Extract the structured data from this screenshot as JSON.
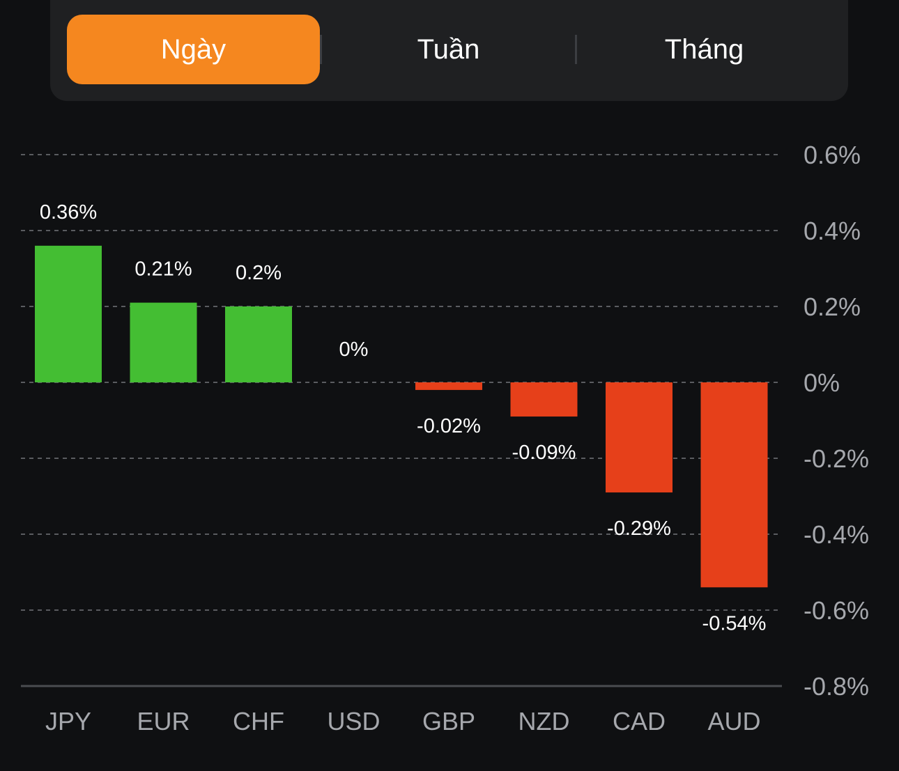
{
  "tabs": [
    {
      "label": "Ngày",
      "active": true
    },
    {
      "label": "Tuần",
      "active": false
    },
    {
      "label": "Tháng",
      "active": false
    }
  ],
  "colors": {
    "accent": "#f5871f",
    "positive": "#44be33",
    "negative": "#e6401a",
    "background": "#0f1012"
  },
  "chart_data": {
    "type": "bar",
    "categories": [
      "JPY",
      "EUR",
      "CHF",
      "USD",
      "GBP",
      "NZD",
      "CAD",
      "AUD"
    ],
    "values": [
      0.36,
      0.21,
      0.2,
      0,
      -0.02,
      -0.09,
      -0.29,
      -0.54
    ],
    "value_labels": [
      "0.36%",
      "0.21%",
      "0.2%",
      "0%",
      "-0.02%",
      "-0.09%",
      "-0.29%",
      "-0.54%"
    ],
    "ylim": [
      -0.8,
      0.6
    ],
    "yticks": [
      0.6,
      0.4,
      0.2,
      0,
      -0.2,
      -0.4,
      -0.6,
      -0.8
    ],
    "ytick_labels": [
      "0.6%",
      "0.4%",
      "0.2%",
      "0%",
      "-0.2%",
      "-0.4%",
      "-0.6%",
      "-0.8%"
    ],
    "grid": true,
    "y_axis_position": "right"
  }
}
